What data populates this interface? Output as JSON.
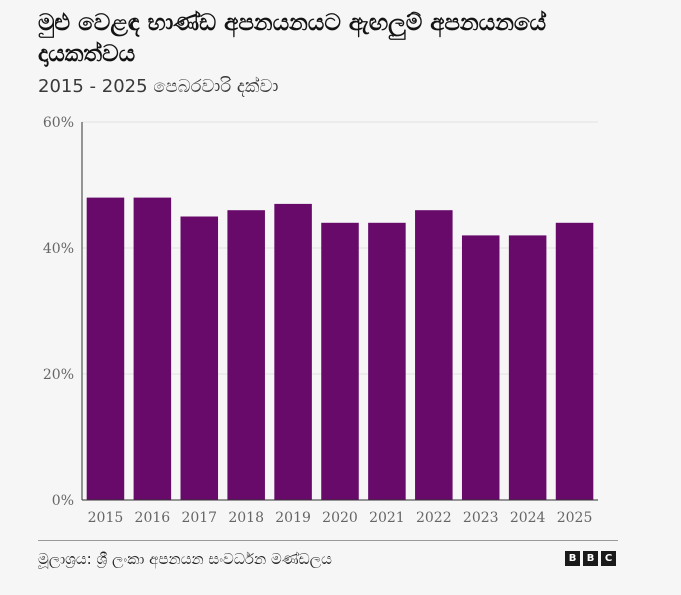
{
  "header": {
    "title": "මුළු වෙළඳ භාණ්ඩ අපනයනයට ඇඟලුම් අපනයනයේ දායකත්වය",
    "subtitle": "2015 - 2025 පෙබරවාරි දක්වා"
  },
  "footer": {
    "source": "මූලාශ්‍රය: ශ්‍රී ලංකා අපනයන සංවර්ධන මණ්ඩලය",
    "logo_letters": [
      "B",
      "B",
      "C"
    ]
  },
  "chart_data": {
    "type": "bar",
    "categories": [
      "2015",
      "2016",
      "2017",
      "2018",
      "2019",
      "2020",
      "2021",
      "2022",
      "2023",
      "2024",
      "2025"
    ],
    "values": [
      48,
      48,
      45,
      46,
      47,
      44,
      44,
      46,
      42,
      42,
      44
    ],
    "ylim": [
      0,
      60
    ],
    "yticks": [
      0,
      20,
      40,
      60
    ],
    "ytick_labels": [
      "0%",
      "20%",
      "40%",
      "60%"
    ],
    "bar_color": "#680a6a",
    "grid": true
  }
}
